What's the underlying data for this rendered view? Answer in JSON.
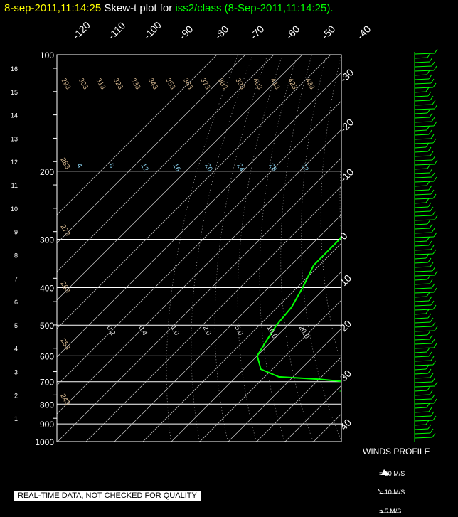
{
  "header": {
    "date_time": "8-sep-2011,11:14:25",
    "plot_label": "Skew-t plot for",
    "source": "iss2/class (8-Sep-2011,11:14:25)."
  },
  "colors": {
    "background": "#000000",
    "temperature_trace": "#00ff00",
    "dewpoint_trace": "#00ff00",
    "isotherm": "#cccccc",
    "isobar": "#ffffff",
    "dry_adiabat_label": "#d2b48c",
    "mixing_ratio_label": "#87ceeb",
    "date_text": "#ffff00",
    "source_text": "#00ff00"
  },
  "chart_data": {
    "type": "line",
    "title": "",
    "xlabel": "",
    "ylabel": "",
    "pressure_axis": {
      "ticks": [
        100,
        200,
        300,
        400,
        500,
        600,
        700,
        800,
        900,
        1000
      ],
      "scale": "log",
      "ylim": [
        1000,
        100
      ]
    },
    "height_axis_km": {
      "ticks": [
        1,
        2,
        3,
        4,
        5,
        6,
        7,
        8,
        9,
        10,
        11,
        12,
        13,
        14,
        15,
        16
      ]
    },
    "temperature_axis_top": {
      "ticks": [
        -120,
        -110,
        -100,
        -90,
        -80,
        -70,
        -60,
        -50,
        -40
      ]
    },
    "temperature_axis_right": {
      "ticks": [
        -30,
        -20,
        -10,
        0,
        10,
        20,
        30,
        40
      ]
    },
    "dry_adiabat_labels": [
      {
        "value": "293",
        "row": "top"
      },
      {
        "value": "303",
        "row": "top"
      },
      {
        "value": "313",
        "row": "top"
      },
      {
        "value": "323",
        "row": "top"
      },
      {
        "value": "333",
        "row": "top"
      },
      {
        "value": "343",
        "row": "top"
      },
      {
        "value": "353",
        "row": "top"
      },
      {
        "value": "363",
        "row": "top"
      },
      {
        "value": "373",
        "row": "top"
      },
      {
        "value": "383",
        "row": "top"
      },
      {
        "value": "393",
        "row": "top"
      },
      {
        "value": "403",
        "row": "top"
      },
      {
        "value": "413",
        "row": "top"
      },
      {
        "value": "423",
        "row": "top"
      },
      {
        "value": "433",
        "row": "top"
      },
      {
        "value": "283",
        "row": "left"
      },
      {
        "value": "273",
        "row": "left"
      },
      {
        "value": "263",
        "row": "left"
      },
      {
        "value": "253",
        "row": "left"
      },
      {
        "value": "243",
        "row": "left"
      }
    ],
    "mixing_ratio_labels_upper": [
      "4",
      "8",
      "12",
      "16",
      "20",
      "24",
      "28",
      "32"
    ],
    "mixing_ratio_labels_lower": [
      "0.2",
      "0.4",
      "1.0",
      "2.0",
      "5.0",
      "10.0",
      "20.0"
    ],
    "series": [
      {
        "name": "temperature",
        "points": [
          {
            "p": 1000,
            "t": 25
          },
          {
            "p": 950,
            "t": 22
          },
          {
            "p": 900,
            "t": 19
          },
          {
            "p": 850,
            "t": 16
          },
          {
            "p": 800,
            "t": 13
          },
          {
            "p": 750,
            "t": 10
          },
          {
            "p": 700,
            "t": 7
          },
          {
            "p": 650,
            "t": 4
          },
          {
            "p": 600,
            "t": 0
          },
          {
            "p": 550,
            "t": -3
          },
          {
            "p": 500,
            "t": -7
          },
          {
            "p": 450,
            "t": -11
          },
          {
            "p": 400,
            "t": -16
          },
          {
            "p": 350,
            "t": -22
          },
          {
            "p": 300,
            "t": -30
          },
          {
            "p": 250,
            "t": -39
          },
          {
            "p": 200,
            "t": -49
          },
          {
            "p": 175,
            "t": -55
          },
          {
            "p": 150,
            "t": -61
          },
          {
            "p": 125,
            "t": -67
          },
          {
            "p": 110,
            "t": -71
          },
          {
            "p": 100,
            "t": -73
          }
        ]
      },
      {
        "name": "dewpoint",
        "points": [
          {
            "p": 1000,
            "t": 22
          },
          {
            "p": 950,
            "t": 20
          },
          {
            "p": 900,
            "t": 18
          },
          {
            "p": 850,
            "t": 14
          },
          {
            "p": 800,
            "t": 12
          },
          {
            "p": 760,
            "t": 10
          },
          {
            "p": 740,
            "t": 2
          },
          {
            "p": 720,
            "t": 4
          },
          {
            "p": 700,
            "t": 0
          },
          {
            "p": 690,
            "t": -10
          },
          {
            "p": 680,
            "t": -25
          },
          {
            "p": 650,
            "t": -34
          },
          {
            "p": 600,
            "t": -40
          },
          {
            "p": 550,
            "t": -42
          },
          {
            "p": 500,
            "t": -44
          },
          {
            "p": 450,
            "t": -45
          },
          {
            "p": 400,
            "t": -48
          },
          {
            "p": 350,
            "t": -52
          },
          {
            "p": 300,
            "t": -52
          },
          {
            "p": 260,
            "t": -55
          },
          {
            "p": 230,
            "t": -63
          },
          {
            "p": 200,
            "t": -68
          },
          {
            "p": 175,
            "t": -72
          },
          {
            "p": 150,
            "t": -80
          },
          {
            "p": 125,
            "t": -83
          },
          {
            "p": 110,
            "t": -84
          },
          {
            "p": 100,
            "t": -84
          }
        ]
      }
    ],
    "grid": true
  },
  "winds_profile": {
    "title": "WINDS PROFILE",
    "legend": [
      {
        "label": "= 50 M/S"
      },
      {
        "label": "= 10 M/S"
      },
      {
        "label": "= 5 M/S"
      }
    ]
  },
  "banner": "REAL-TIME DATA, NOT CHECKED FOR QUALITY"
}
